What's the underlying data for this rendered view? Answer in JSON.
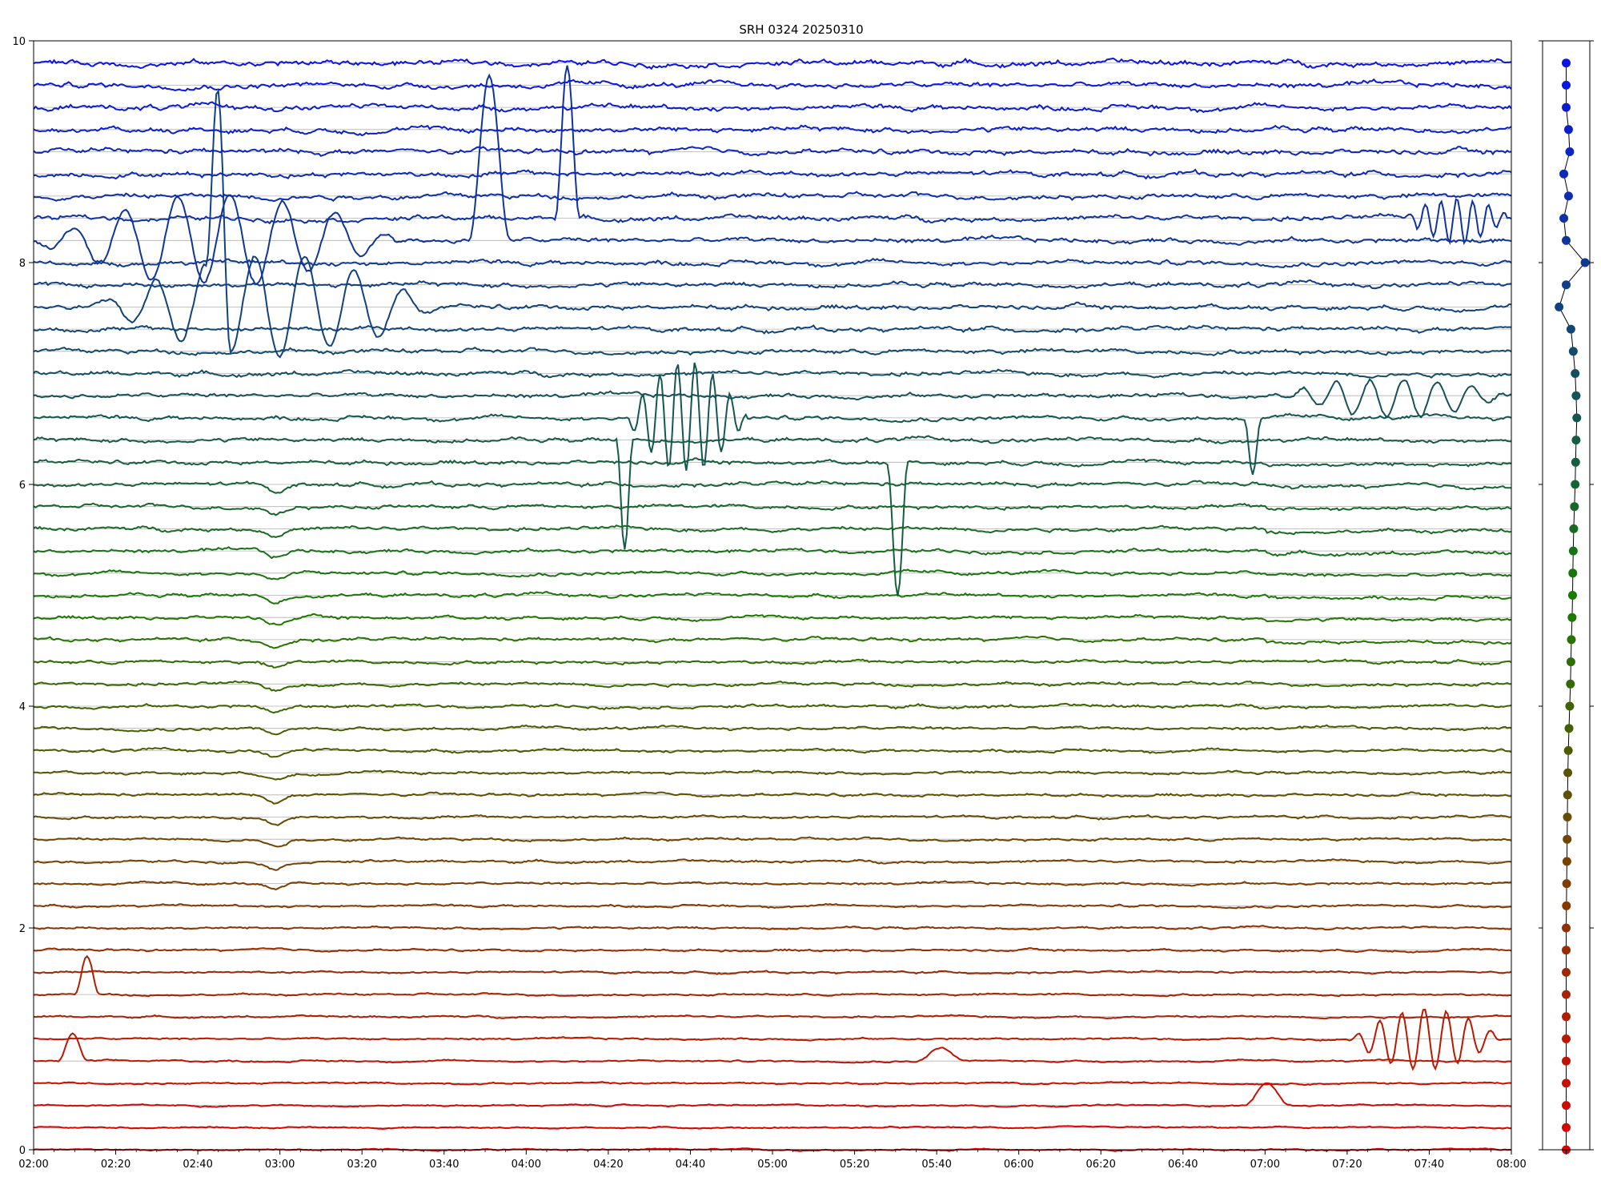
{
  "chart_data": [
    {
      "type": "line",
      "title": "SRH 0324 20250310",
      "xlabel": "",
      "ylabel": "",
      "xlim": [
        "02:00",
        "08:00"
      ],
      "ylim": [
        0,
        10
      ],
      "x_ticks": [
        "02:00",
        "02:20",
        "02:40",
        "03:00",
        "03:20",
        "03:40",
        "04:00",
        "04:20",
        "04:40",
        "05:00",
        "05:20",
        "05:40",
        "06:00",
        "06:20",
        "06:40",
        "07:00",
        "07:20",
        "07:40",
        "08:00"
      ],
      "y_ticks": [
        0,
        2,
        4,
        6,
        8,
        10
      ],
      "grid": "horizontal reference line at each trace baseline",
      "traces": {
        "count": 50,
        "baseline_start": 0,
        "baseline_step": 0.2,
        "color_bottom": "#e00000",
        "color_middle": "#1a7a00",
        "color_top": "#0a14e6"
      },
      "features": [
        {
          "trace": 7,
          "kind": "bump",
          "start": "02:10",
          "end": "02:16",
          "amplitude": 0.35
        },
        {
          "trace": 4,
          "kind": "bump",
          "start": "02:06",
          "end": "02:13",
          "amplitude": 0.25
        },
        {
          "trace": 4,
          "kind": "bump",
          "start": "05:35",
          "end": "05:47",
          "amplitude": 0.12
        },
        {
          "trace": 2,
          "kind": "bump",
          "start": "06:55",
          "end": "07:06",
          "amplitude": 0.2
        },
        {
          "trace": 5,
          "kind": "oscillation",
          "start": "07:20",
          "end": "07:58",
          "amplitude": 0.55
        },
        {
          "trace": 33,
          "kind": "oscillation",
          "start": "04:24",
          "end": "04:54",
          "amplitude": 1.0
        },
        {
          "trace": 32,
          "kind": "dip",
          "start": "04:22",
          "end": "04:26",
          "amplitude": -1.0
        },
        {
          "trace": 31,
          "kind": "dip",
          "start": "05:28",
          "end": "05:33",
          "amplitude": -1.2
        },
        {
          "trace": 33,
          "kind": "dip",
          "start": "06:55",
          "end": "06:59",
          "amplitude": -0.5
        },
        {
          "trace": 34,
          "kind": "oscillation",
          "start": "07:02",
          "end": "08:00",
          "amplitude": 0.35
        },
        {
          "trace": 38,
          "kind": "oscillation",
          "start": "02:15",
          "end": "03:40",
          "amplitude": 0.9
        },
        {
          "trace": 38,
          "kind": "bump",
          "start": "02:42",
          "end": "02:48",
          "amplitude": 2.0
        },
        {
          "trace": 41,
          "kind": "oscillation",
          "start": "02:00",
          "end": "03:30",
          "amplitude": 0.8
        },
        {
          "trace": 41,
          "kind": "bump",
          "start": "03:46",
          "end": "03:56",
          "amplitude": 1.5
        },
        {
          "trace": 42,
          "kind": "bump",
          "start": "04:07",
          "end": "04:13",
          "amplitude": 1.4
        },
        {
          "trace": 42,
          "kind": "oscillation",
          "start": "07:33",
          "end": "08:00",
          "amplitude": 0.4
        }
      ]
    },
    {
      "type": "scatter",
      "title": "",
      "ylim": [
        0,
        10
      ],
      "xlim": [
        -1,
        1
      ],
      "points": {
        "count": 50,
        "x_offsets": [
          0,
          0,
          0,
          0,
          0,
          0,
          0,
          0,
          0,
          0,
          0,
          0.01,
          0.02,
          0.03,
          0.04,
          0.05,
          0.06,
          0.07,
          0.09,
          0.12,
          0.15,
          0.18,
          0.2,
          0.22,
          0.25,
          0.27,
          0.28,
          0.3,
          0.32,
          0.35,
          0.38,
          0.4,
          0.42,
          0.45,
          0.42,
          0.38,
          0.3,
          0.2,
          -0.3,
          0,
          0.8,
          0,
          -0.1,
          0.1,
          -0.1,
          0.15,
          0.1,
          0,
          0,
          0
        ]
      }
    }
  ]
}
